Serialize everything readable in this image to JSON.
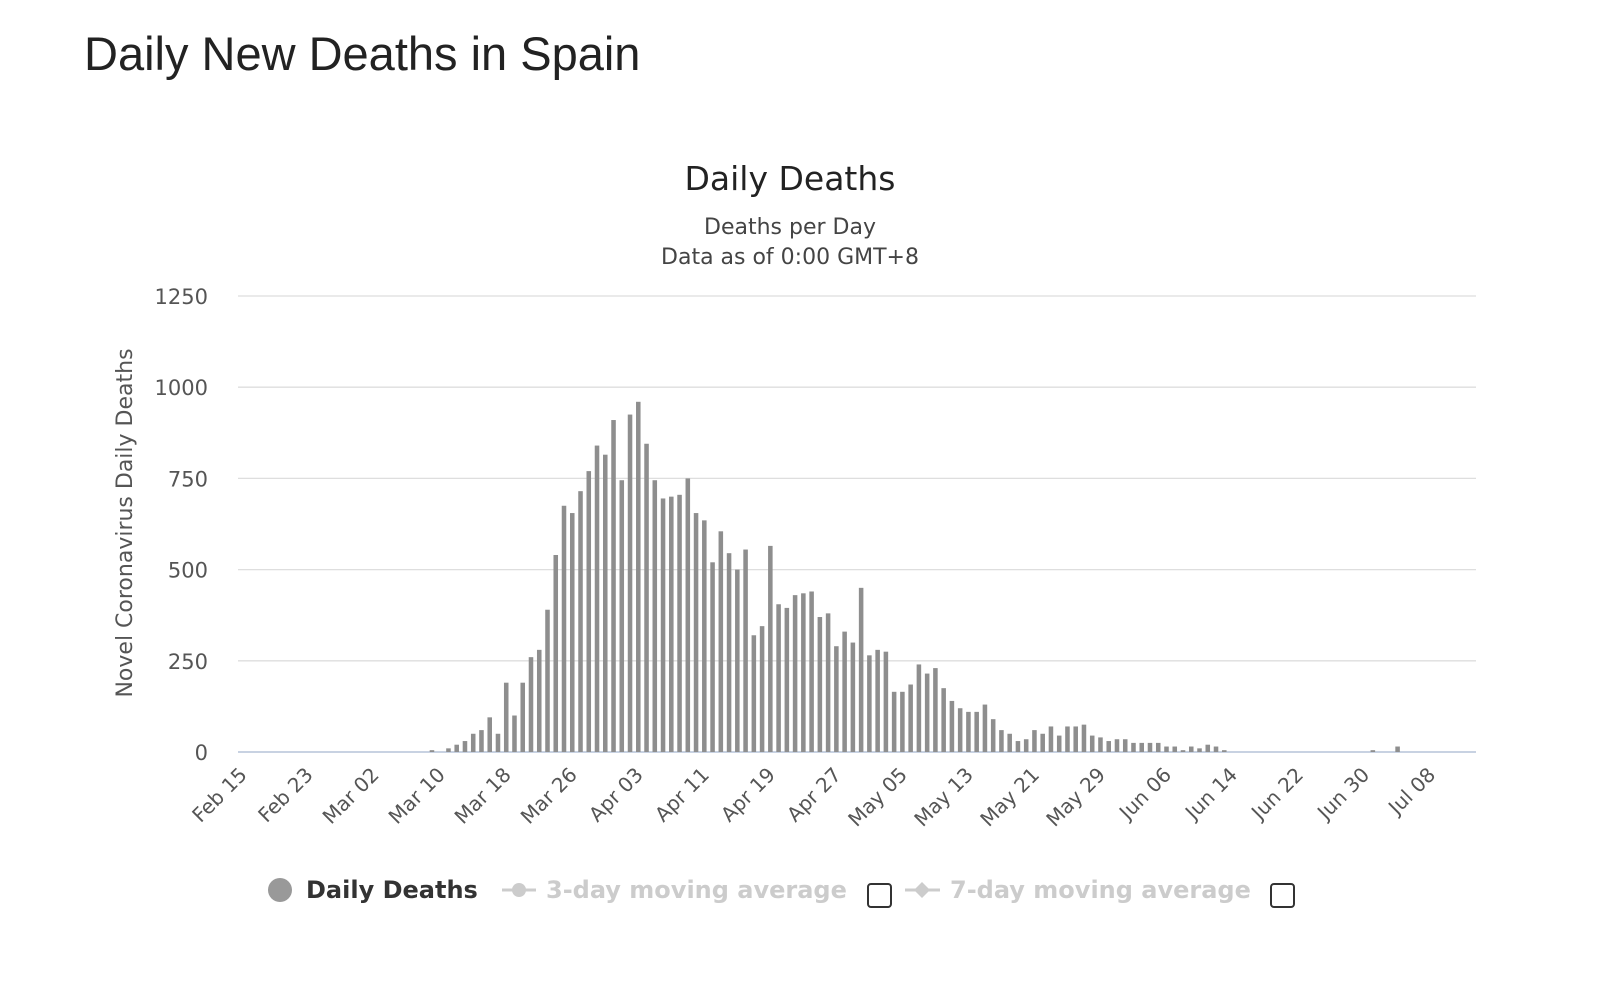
{
  "page": {
    "title": "Daily New Deaths in Spain"
  },
  "legend": {
    "items": [
      {
        "label": "Daily Deaths",
        "active": true
      },
      {
        "label": "3-day moving average",
        "active": false
      },
      {
        "label": "7-day moving average",
        "active": false
      }
    ]
  },
  "colors": {
    "bar": "#8e8e8e",
    "legend_active": "#333333",
    "legend_inactive": "#cccccc",
    "axis": "#b5c4d8",
    "grid": "#dedede"
  },
  "chart_data": {
    "type": "bar",
    "title": "Daily Deaths",
    "subtitle": [
      "Deaths per Day",
      "Data as of 0:00 GMT+8"
    ],
    "ylabel": "Novel Coronavirus Daily Deaths",
    "ylim": [
      0,
      1250
    ],
    "yticks": [
      0,
      250,
      500,
      750,
      1000,
      1250
    ],
    "x_start": "2020-02-15",
    "x_end": "2020-07-13",
    "xtick_labels": [
      "Feb 15",
      "Feb 23",
      "Mar 02",
      "Mar 10",
      "Mar 18",
      "Mar 26",
      "Apr 03",
      "Apr 11",
      "Apr 19",
      "Apr 27",
      "May 05",
      "May 13",
      "May 21",
      "May 29",
      "Jun 06",
      "Jun 14",
      "Jun 22",
      "Jun 30",
      "Jul 08"
    ],
    "grid": true,
    "legend_position": "bottom",
    "series": [
      {
        "name": "Daily Deaths",
        "x": [
          "2020-03-09",
          "2020-03-11",
          "2020-03-12",
          "2020-03-13",
          "2020-03-14",
          "2020-03-15",
          "2020-03-16",
          "2020-03-17",
          "2020-03-18",
          "2020-03-19",
          "2020-03-20",
          "2020-03-21",
          "2020-03-22",
          "2020-03-23",
          "2020-03-24",
          "2020-03-25",
          "2020-03-26",
          "2020-03-27",
          "2020-03-28",
          "2020-03-29",
          "2020-03-30",
          "2020-03-31",
          "2020-04-01",
          "2020-04-02",
          "2020-04-03",
          "2020-04-04",
          "2020-04-05",
          "2020-04-06",
          "2020-04-07",
          "2020-04-08",
          "2020-04-09",
          "2020-04-10",
          "2020-04-11",
          "2020-04-12",
          "2020-04-13",
          "2020-04-14",
          "2020-04-15",
          "2020-04-16",
          "2020-04-17",
          "2020-04-18",
          "2020-04-19",
          "2020-04-20",
          "2020-04-21",
          "2020-04-22",
          "2020-04-23",
          "2020-04-24",
          "2020-04-25",
          "2020-04-26",
          "2020-04-27",
          "2020-04-28",
          "2020-04-29",
          "2020-04-30",
          "2020-05-01",
          "2020-05-02",
          "2020-05-03",
          "2020-05-04",
          "2020-05-05",
          "2020-05-06",
          "2020-05-07",
          "2020-05-08",
          "2020-05-09",
          "2020-05-10",
          "2020-05-11",
          "2020-05-12",
          "2020-05-13",
          "2020-05-14",
          "2020-05-15",
          "2020-05-16",
          "2020-05-17",
          "2020-05-18",
          "2020-05-19",
          "2020-05-20",
          "2020-05-21",
          "2020-05-22",
          "2020-05-23",
          "2020-05-24",
          "2020-05-25",
          "2020-05-26",
          "2020-05-27",
          "2020-05-28",
          "2020-05-29",
          "2020-05-30",
          "2020-05-31",
          "2020-06-01",
          "2020-06-02",
          "2020-06-03",
          "2020-06-04",
          "2020-06-05",
          "2020-06-06",
          "2020-06-07",
          "2020-06-08",
          "2020-06-09",
          "2020-06-10",
          "2020-06-11",
          "2020-06-12",
          "2020-06-13",
          "2020-06-14",
          "2020-06-15",
          "2020-07-01",
          "2020-07-04"
        ],
        "values": [
          5,
          10,
          20,
          30,
          50,
          60,
          95,
          50,
          190,
          100,
          190,
          260,
          280,
          390,
          540,
          675,
          655,
          715,
          770,
          840,
          815,
          910,
          745,
          925,
          960,
          845,
          745,
          695,
          700,
          705,
          750,
          655,
          635,
          520,
          605,
          545,
          500,
          555,
          320,
          345,
          565,
          405,
          395,
          430,
          435,
          440,
          370,
          380,
          290,
          330,
          300,
          450,
          265,
          280,
          275,
          165,
          165,
          185,
          240,
          215,
          230,
          175,
          140,
          120,
          110,
          110,
          130,
          90,
          60,
          50,
          30,
          35,
          60,
          50,
          70,
          45,
          70,
          70,
          75,
          45,
          40,
          30,
          35,
          35,
          25,
          25,
          25,
          25,
          15,
          15,
          5,
          15,
          10,
          20,
          15,
          5,
          0,
          0,
          5,
          15
        ]
      }
    ]
  }
}
